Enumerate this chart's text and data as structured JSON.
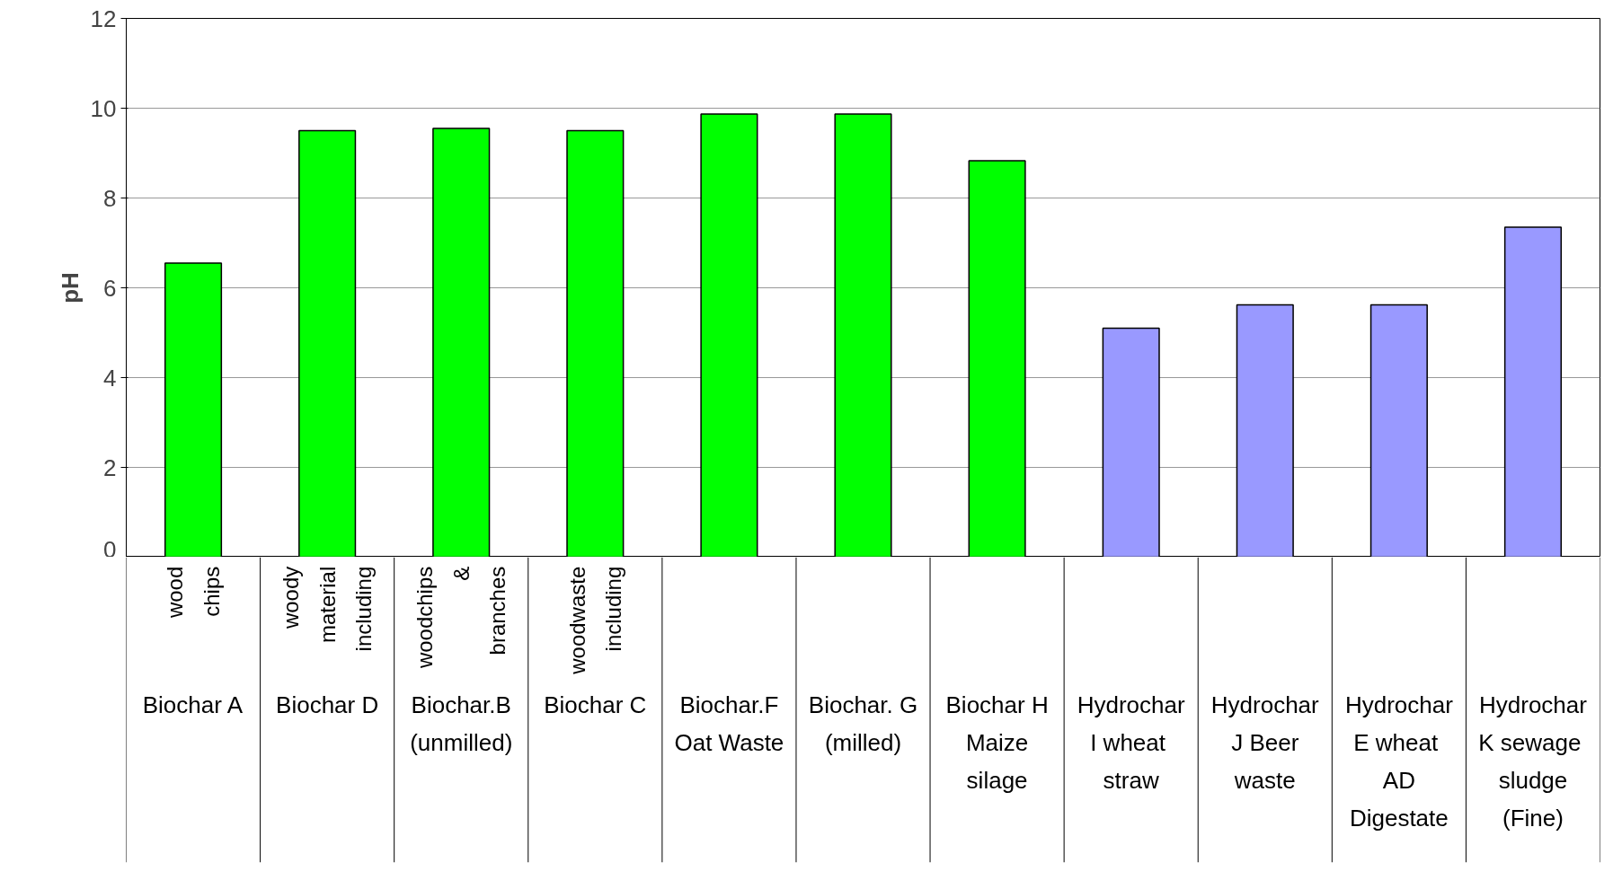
{
  "chart_data": {
    "type": "bar",
    "ylabel": "pH",
    "categories": [
      "Biochar A",
      "Biochar D",
      "Biochar.B (unmilled)",
      "Biochar C",
      "Biochar.F Oat Waste",
      "Biochar. G (milled)",
      "Biochar H Maize silage",
      "Hydrochar I  wheat straw",
      "Hydrochar J Beer waste",
      "Hydrochar E  wheat AD Digestate",
      "Hydrochar K  sewage sludge (Fine)"
    ],
    "values": [
      6.55,
      9.5,
      9.55,
      9.5,
      9.87,
      9.87,
      8.83,
      5.1,
      5.62,
      5.62,
      7.35
    ],
    "colors": [
      "#00ff00",
      "#00ff00",
      "#00ff00",
      "#00ff00",
      "#00ff00",
      "#00ff00",
      "#00ff00",
      "#9999ff",
      "#9999ff",
      "#9999ff",
      "#9999ff"
    ],
    "ylim": [
      0,
      12
    ],
    "yticks": [
      0,
      2,
      4,
      6,
      8,
      10,
      12
    ],
    "grid": "y",
    "annotations": [
      "wood chips",
      "woody material including",
      "woodchips & branches",
      "woodwaste including"
    ]
  }
}
